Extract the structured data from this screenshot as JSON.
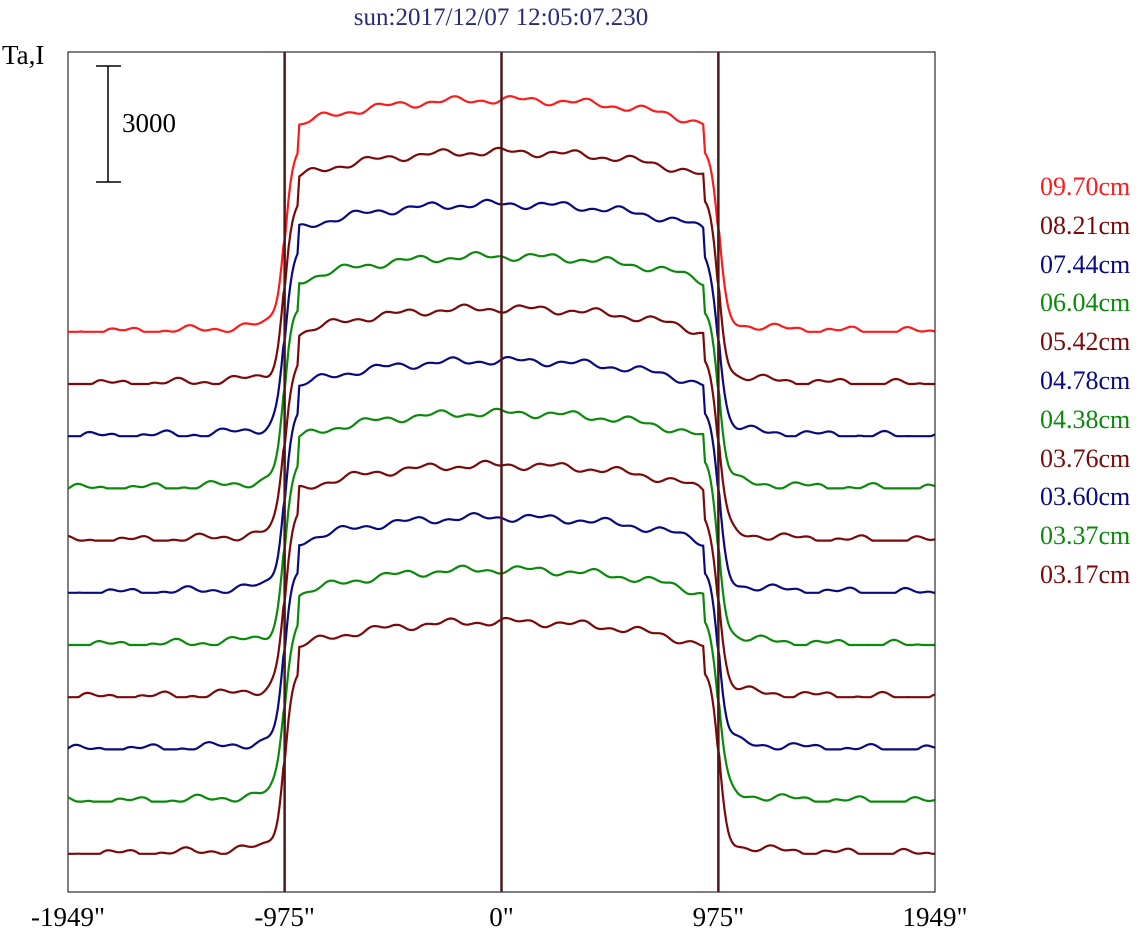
{
  "chart_data": {
    "type": "line",
    "title": "sun:2017/12/07 12:05:07.230",
    "ylabel": "Ta,I",
    "scale_bar_label": "3000",
    "x_tick_labels": [
      "-1949\"",
      "-975\"",
      "0\"",
      "975\"",
      "1949\""
    ],
    "x_ticks": [
      -1949,
      -975,
      0,
      975,
      1949
    ],
    "xlim": [
      -1949,
      1949
    ],
    "vertical_lines_at": [
      -975,
      0,
      975
    ],
    "vertical_line_color": "#4a1a1a",
    "y_units_per_series_offset": 1350,
    "series": [
      {
        "name": "09.70cm",
        "color": "#ff1a1a",
        "baseline": 14850,
        "rise": 6000
      },
      {
        "name": "08.21cm",
        "color": "#7a0a0a",
        "baseline": 13500,
        "rise": 6000
      },
      {
        "name": "07.44cm",
        "color": "#0a0a80",
        "baseline": 12150,
        "rise": 6000
      },
      {
        "name": "06.04cm",
        "color": "#0a8a0a",
        "baseline": 10800,
        "rise": 6000
      },
      {
        "name": "05.42cm",
        "color": "#7a0a0a",
        "baseline": 9450,
        "rise": 6000
      },
      {
        "name": "04.78cm",
        "color": "#0a0a80",
        "baseline": 8100,
        "rise": 6000
      },
      {
        "name": "04.38cm",
        "color": "#0a8a0a",
        "baseline": 6750,
        "rise": 6000
      },
      {
        "name": "03.76cm",
        "color": "#7a0a0a",
        "baseline": 5400,
        "rise": 6000
      },
      {
        "name": "03.60cm",
        "color": "#0a0a80",
        "baseline": 4050,
        "rise": 6000
      },
      {
        "name": "03.37cm",
        "color": "#0a8a0a",
        "baseline": 2700,
        "rise": 6000
      },
      {
        "name": "03.17cm",
        "color": "#7a0a0a",
        "baseline": 1350,
        "rise": 6000
      }
    ],
    "grid": false,
    "legend_position": "right"
  }
}
